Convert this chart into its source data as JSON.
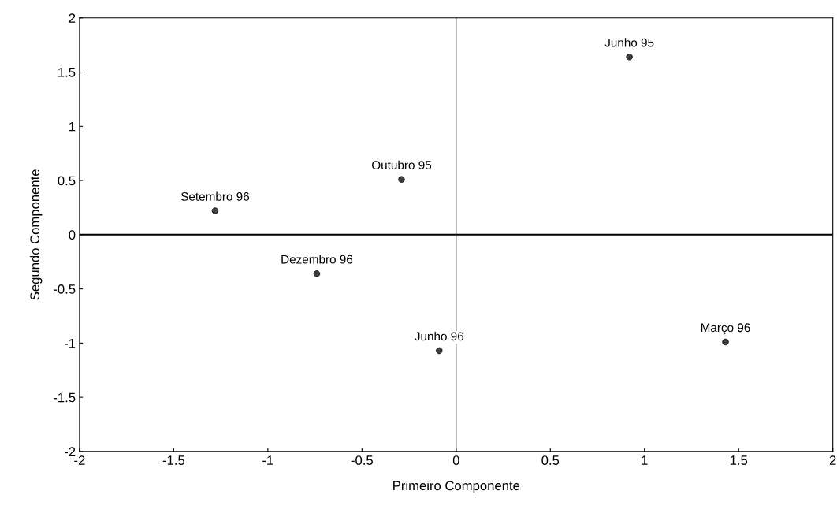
{
  "chart_data": {
    "type": "scatter",
    "xlabel": "Primeiro Componente",
    "ylabel": "Segundo Componente",
    "x": [
      0.92,
      -0.29,
      -1.28,
      -0.74,
      -0.09,
      1.43
    ],
    "values": [
      1.64,
      0.51,
      0.22,
      -0.36,
      -1.07,
      -0.99
    ],
    "color": "#404040",
    "marker": "circle",
    "annotations": [
      {
        "text": "Junho 95",
        "x": 0.92,
        "y": 1.64
      },
      {
        "text": "Outubro 95",
        "x": -0.29,
        "y": 0.51
      },
      {
        "text": "Setembro 96",
        "x": -1.28,
        "y": 0.22
      },
      {
        "text": "Dezembro 96",
        "x": -0.74,
        "y": -0.36
      },
      {
        "text": "Junho 96",
        "x": -0.09,
        "y": -1.07
      },
      {
        "text": "Março 96",
        "x": 1.43,
        "y": -0.99
      }
    ],
    "xlim": [
      -2,
      2
    ],
    "ylim": [
      -2,
      2
    ],
    "xticks": [
      -2,
      -1.5,
      -1,
      -0.5,
      0,
      0.5,
      1,
      1.5,
      2
    ],
    "yticks": [
      -2,
      -1.5,
      -1,
      -0.5,
      0,
      0.5,
      1,
      1.5,
      2
    ],
    "ref_lines": [
      {
        "axis": "x",
        "value": 0,
        "color": "#666666"
      },
      {
        "axis": "y",
        "value": 0,
        "color": "#000000"
      }
    ],
    "grid": false
  }
}
